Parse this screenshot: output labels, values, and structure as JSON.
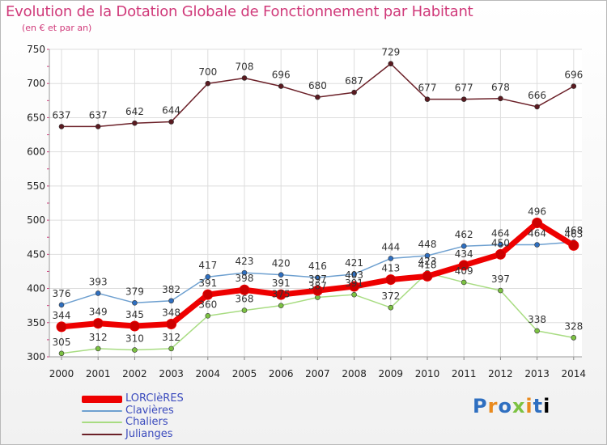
{
  "title": "Evolution de la Dotation Globale de Fonctionnement par Habitant",
  "subtitle": "(en € et par an)",
  "logo": "Proxiti",
  "colors": {
    "title": "#d03a7a",
    "legend_text": "#3b4bbd",
    "grid": "#dddddd"
  },
  "chart_data": {
    "type": "line",
    "title": "Evolution de la Dotation Globale de Fonctionnement par Habitant",
    "subtitle": "(en € et par an)",
    "x": [
      2000,
      2001,
      2002,
      2003,
      2004,
      2005,
      2006,
      2007,
      2008,
      2009,
      2010,
      2011,
      2012,
      2013,
      2014
    ],
    "ylim": [
      300,
      750
    ],
    "yticks": [
      300,
      350,
      400,
      450,
      500,
      550,
      600,
      650,
      700,
      750
    ],
    "grid": true,
    "legend_position": "bottom-left",
    "series": [
      {
        "name": "Julianges",
        "color": "#6b2028",
        "point_color": "#5a1a20",
        "width": 1.5,
        "marker": 3,
        "values": [
          637,
          637,
          642,
          644,
          700,
          708,
          696,
          680,
          687,
          729,
          677,
          677,
          678,
          666,
          696
        ]
      },
      {
        "name": "Clavières",
        "color": "#6ea0d0",
        "point_color": "#2f6fc0",
        "width": 1.5,
        "marker": 3,
        "values": [
          376,
          393,
          379,
          382,
          417,
          423,
          420,
          416,
          421,
          444,
          448,
          462,
          464,
          464,
          468
        ]
      },
      {
        "name": "Chaliers",
        "color": "#a8dc82",
        "point_color": "#7cc242",
        "width": 1.5,
        "marker": 3,
        "values": [
          305,
          312,
          310,
          312,
          360,
          368,
          375,
          387,
          391,
          372,
          423,
          409,
          397,
          338,
          328
        ]
      },
      {
        "name": "LORCIèRES",
        "color": "#ee0000",
        "point_color": "#cc0000",
        "width": 7,
        "marker": 6,
        "values": [
          344,
          349,
          345,
          348,
          391,
          398,
          391,
          397,
          403,
          413,
          418,
          434,
          450,
          496,
          463
        ]
      }
    ]
  },
  "legend": [
    {
      "label": "LORCIèRES",
      "color": "#ee0000"
    },
    {
      "label": "Clavières",
      "color": "#6ea0d0"
    },
    {
      "label": "Chaliers",
      "color": "#a8dc82"
    },
    {
      "label": "Julianges",
      "color": "#6b2028"
    }
  ]
}
